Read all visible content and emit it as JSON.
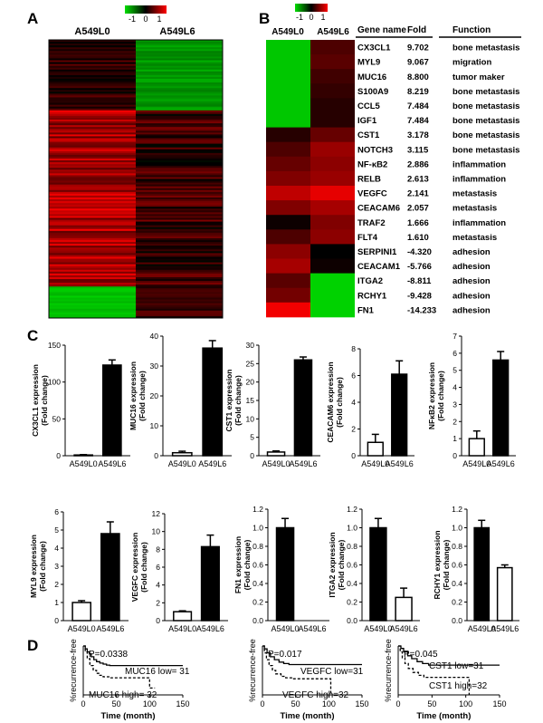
{
  "panels": {
    "A": "A",
    "B": "B",
    "C": "C",
    "D": "D"
  },
  "heatmap_a": {
    "col_labels": [
      "A549L0",
      "A549L6"
    ],
    "scale_ticks": [
      "-1",
      "0",
      "1"
    ]
  },
  "heatmap_b": {
    "col_labels": [
      "A549L0",
      "A549L6"
    ],
    "scale_ticks": [
      "-1",
      "0",
      "1"
    ],
    "headers": {
      "gene": "Gene name",
      "fold": "Fold",
      "function": "Function"
    },
    "rows": [
      {
        "gene": "CX3CL1",
        "fold": "9.702",
        "function": "bone metastasis",
        "c0": -0.9,
        "c1": 0.3
      },
      {
        "gene": "MYL9",
        "fold": "9.067",
        "function": "migration",
        "c0": -0.9,
        "c1": 0.35
      },
      {
        "gene": "MUC16",
        "fold": "8.800",
        "function": "tumor maker",
        "c0": -0.9,
        "c1": 0.25
      },
      {
        "gene": "S100A9",
        "fold": "8.219",
        "function": "bone metastasis",
        "c0": -0.9,
        "c1": 0.2
      },
      {
        "gene": "CCL5",
        "fold": "7.484",
        "function": "bone metastasis",
        "c0": -0.9,
        "c1": 0.15
      },
      {
        "gene": "IGF1",
        "fold": "7.484",
        "function": "bone metastasis",
        "c0": -0.9,
        "c1": 0.15
      },
      {
        "gene": "CST1",
        "fold": "3.178",
        "function": "bone metastasis",
        "c0": 0.15,
        "c1": 0.4
      },
      {
        "gene": "NOTCH3",
        "fold": "3.115",
        "function": "bone metastasis",
        "c0": 0.3,
        "c1": 0.6
      },
      {
        "gene": "NF-κB2",
        "fold": "2.886",
        "function": "inflammation",
        "c0": 0.4,
        "c1": 0.55
      },
      {
        "gene": "RELB",
        "fold": "2.613",
        "function": "inflammation",
        "c0": 0.5,
        "c1": 0.6
      },
      {
        "gene": "VEGFC",
        "fold": "2.141",
        "function": "metastasis",
        "c0": 0.75,
        "c1": 0.9
      },
      {
        "gene": "CEACAM6",
        "fold": "2.057",
        "function": "metastasis",
        "c0": 0.5,
        "c1": 0.65
      },
      {
        "gene": "TRAF2",
        "fold": "1.666",
        "function": "inflammation",
        "c0": 0.05,
        "c1": 0.5
      },
      {
        "gene": "FLT4",
        "fold": "1.610",
        "function": "metastasis",
        "c0": 0.3,
        "c1": 0.55
      },
      {
        "gene": "SERPINI1",
        "fold": "-4.320",
        "function": "adhesion",
        "c0": 0.55,
        "c1": 0.0
      },
      {
        "gene": "CEACAM1",
        "fold": "-5.766",
        "function": "adhesion",
        "c0": 0.65,
        "c1": 0.05
      },
      {
        "gene": "ITGA2",
        "fold": "-8.811",
        "function": "adhesion",
        "c0": 0.35,
        "c1": -0.95
      },
      {
        "gene": "RCHY1",
        "fold": "-9.428",
        "function": "adhesion",
        "c0": 0.45,
        "c1": -0.95
      },
      {
        "gene": "FN1",
        "fold": "-14.233",
        "function": "adhesion",
        "c0": 0.95,
        "c1": -0.95
      }
    ]
  },
  "chart_data": [
    {
      "type": "bar",
      "ylabel": "CX3CL1 expression (Fold change)",
      "categories": [
        "A549L0",
        "A549L6"
      ],
      "values": [
        1,
        123
      ],
      "errors": [
        0.5,
        7
      ],
      "yticks": [
        0,
        50,
        100,
        150
      ],
      "ylim": [
        0,
        150
      ],
      "fills": [
        "#ffffff",
        "#000000"
      ]
    },
    {
      "type": "bar",
      "ylabel": "MUC16 expression (Fold change)",
      "categories": [
        "A549L0",
        "A549L6"
      ],
      "values": [
        1,
        36
      ],
      "errors": [
        0.5,
        2.5
      ],
      "yticks": [
        0,
        10,
        20,
        30,
        40
      ],
      "ylim": [
        0,
        40
      ],
      "fills": [
        "#ffffff",
        "#000000"
      ]
    },
    {
      "type": "bar",
      "ylabel": "CST1 expression (Fold change)",
      "categories": [
        "A549L0",
        "A549L6"
      ],
      "values": [
        1,
        26
      ],
      "errors": [
        0.3,
        0.8
      ],
      "yticks": [
        0,
        5,
        10,
        15,
        20,
        25,
        30
      ],
      "ylim": [
        0,
        30
      ],
      "fills": [
        "#ffffff",
        "#000000"
      ]
    },
    {
      "type": "bar",
      "ylabel": "CEACAM6 expression (Fold change)",
      "categories": [
        "A549L0",
        "A549L6"
      ],
      "values": [
        1,
        6.1
      ],
      "errors": [
        0.6,
        1.0
      ],
      "yticks": [
        0,
        2,
        4,
        6,
        8
      ],
      "ylim": [
        0,
        8
      ],
      "fills": [
        "#ffffff",
        "#000000"
      ]
    },
    {
      "type": "bar",
      "ylabel": "NFκB2 expression (Fold change)",
      "categories": [
        "A549L0",
        "A549L6"
      ],
      "values": [
        1,
        5.6
      ],
      "errors": [
        0.45,
        0.5
      ],
      "yticks": [
        0,
        1,
        2,
        3,
        4,
        5,
        6,
        7
      ],
      "ylim": [
        0,
        7
      ],
      "fills": [
        "#ffffff",
        "#000000"
      ]
    },
    {
      "type": "bar",
      "ylabel": "MYL9 expression (Fold change)",
      "categories": [
        "A549L0",
        "A549L6"
      ],
      "values": [
        1,
        4.8
      ],
      "errors": [
        0.1,
        0.65
      ],
      "yticks": [
        0,
        1,
        2,
        3,
        4,
        5,
        6
      ],
      "ylim": [
        0,
        6
      ],
      "fills": [
        "#ffffff",
        "#000000"
      ]
    },
    {
      "type": "bar",
      "ylabel": "VEGFC  expression (Fold change)",
      "categories": [
        "A549L0",
        "A549L6"
      ],
      "values": [
        1,
        8.3
      ],
      "errors": [
        0.1,
        1.3
      ],
      "yticks": [
        0,
        2,
        4,
        6,
        8,
        10,
        12
      ],
      "ylim": [
        0,
        12
      ],
      "fills": [
        "#ffffff",
        "#000000"
      ]
    },
    {
      "type": "bar",
      "ylabel": "FN1 expression (Fold change)",
      "categories": [
        "A549L0",
        "A549L6"
      ],
      "values": [
        1.0,
        0.0
      ],
      "errors": [
        0.1,
        0
      ],
      "yticks": [
        "0.0",
        "0.2",
        "0.4",
        "0.6",
        "0.8",
        "1.0",
        "1.2"
      ],
      "ylim": [
        0,
        1.2
      ],
      "fills": [
        "#000000",
        "#ffffff"
      ]
    },
    {
      "type": "bar",
      "ylabel": "ITGA2 expression (Fold change)",
      "categories": [
        "A549L0",
        "A549L6"
      ],
      "values": [
        1.0,
        0.25
      ],
      "errors": [
        0.1,
        0.1
      ],
      "yticks": [
        "0.0",
        "0.2",
        "0.4",
        "0.6",
        "0.8",
        "1.0",
        "1.2"
      ],
      "ylim": [
        0,
        1.2
      ],
      "fills": [
        "#000000",
        "#ffffff"
      ]
    },
    {
      "type": "bar",
      "ylabel": "RCHY1 expression (Fold change)",
      "categories": [
        "A549L0",
        "A549L6"
      ],
      "values": [
        1.0,
        0.57
      ],
      "errors": [
        0.08,
        0.03
      ],
      "yticks": [
        "0.0",
        "0.2",
        "0.4",
        "0.6",
        "0.8",
        "1.0",
        "1.2"
      ],
      "ylim": [
        0,
        1.2
      ],
      "fills": [
        "#000000",
        "#ffffff"
      ]
    },
    {
      "type": "line",
      "subtype": "kaplan-meier",
      "ylabel": "%recurrence-free",
      "xlabel": "Time (month)",
      "xticks": [
        0,
        50,
        100,
        150
      ],
      "xlim": [
        0,
        150
      ],
      "ylim": [
        0,
        1
      ],
      "pvalue": "P=0.0338",
      "series": [
        {
          "name": "MUC16 low= 31",
          "dash": false,
          "x": [
            0,
            3,
            6,
            9,
            12,
            16,
            20,
            25,
            30,
            35,
            40,
            150
          ],
          "y": [
            1,
            0.94,
            0.88,
            0.84,
            0.78,
            0.72,
            0.68,
            0.65,
            0.63,
            0.61,
            0.6,
            0.6
          ]
        },
        {
          "name": "MUC16 high= 32",
          "dash": true,
          "x": [
            0,
            3,
            6,
            10,
            15,
            20,
            25,
            30,
            40,
            100,
            100,
            108
          ],
          "y": [
            1,
            0.88,
            0.74,
            0.6,
            0.5,
            0.44,
            0.4,
            0.37,
            0.35,
            0.35,
            0.14,
            0.14
          ]
        }
      ]
    },
    {
      "type": "line",
      "subtype": "kaplan-meier",
      "ylabel": "%recurrence-free",
      "xlabel": "Time (month)",
      "xticks": [
        0,
        50,
        100,
        150
      ],
      "xlim": [
        0,
        150
      ],
      "ylim": [
        0,
        1
      ],
      "pvalue": "P=0.017",
      "series": [
        {
          "name": "VEGFC low=31",
          "dash": false,
          "x": [
            0,
            3,
            7,
            12,
            18,
            25,
            32,
            40,
            150
          ],
          "y": [
            1,
            0.94,
            0.86,
            0.78,
            0.72,
            0.67,
            0.64,
            0.62,
            0.62
          ]
        },
        {
          "name": "VEGFC high=32",
          "dash": true,
          "x": [
            0,
            3,
            6,
            10,
            15,
            20,
            28,
            35,
            45,
            103,
            103
          ],
          "y": [
            1,
            0.86,
            0.72,
            0.6,
            0.5,
            0.43,
            0.38,
            0.35,
            0.33,
            0.33,
            0.0
          ]
        }
      ]
    },
    {
      "type": "line",
      "subtype": "kaplan-meier",
      "ylabel": "%recurrence-free",
      "xlabel": "Time (month)",
      "xticks": [
        0,
        50,
        100,
        150
      ],
      "xlim": [
        0,
        150
      ],
      "ylim": [
        0,
        1
      ],
      "pvalue": "P=0.045",
      "series": [
        {
          "name": "CST1 low=31",
          "dash": false,
          "x": [
            0,
            4,
            8,
            14,
            20,
            28,
            36,
            45,
            150
          ],
          "y": [
            1,
            0.95,
            0.88,
            0.8,
            0.74,
            0.68,
            0.64,
            0.61,
            0.61
          ]
        },
        {
          "name": "CST1 high=32",
          "dash": true,
          "x": [
            0,
            3,
            6,
            10,
            15,
            22,
            30,
            38,
            105,
            105
          ],
          "y": [
            1,
            0.88,
            0.76,
            0.64,
            0.54,
            0.46,
            0.4,
            0.36,
            0.36,
            0.0
          ]
        }
      ]
    }
  ]
}
